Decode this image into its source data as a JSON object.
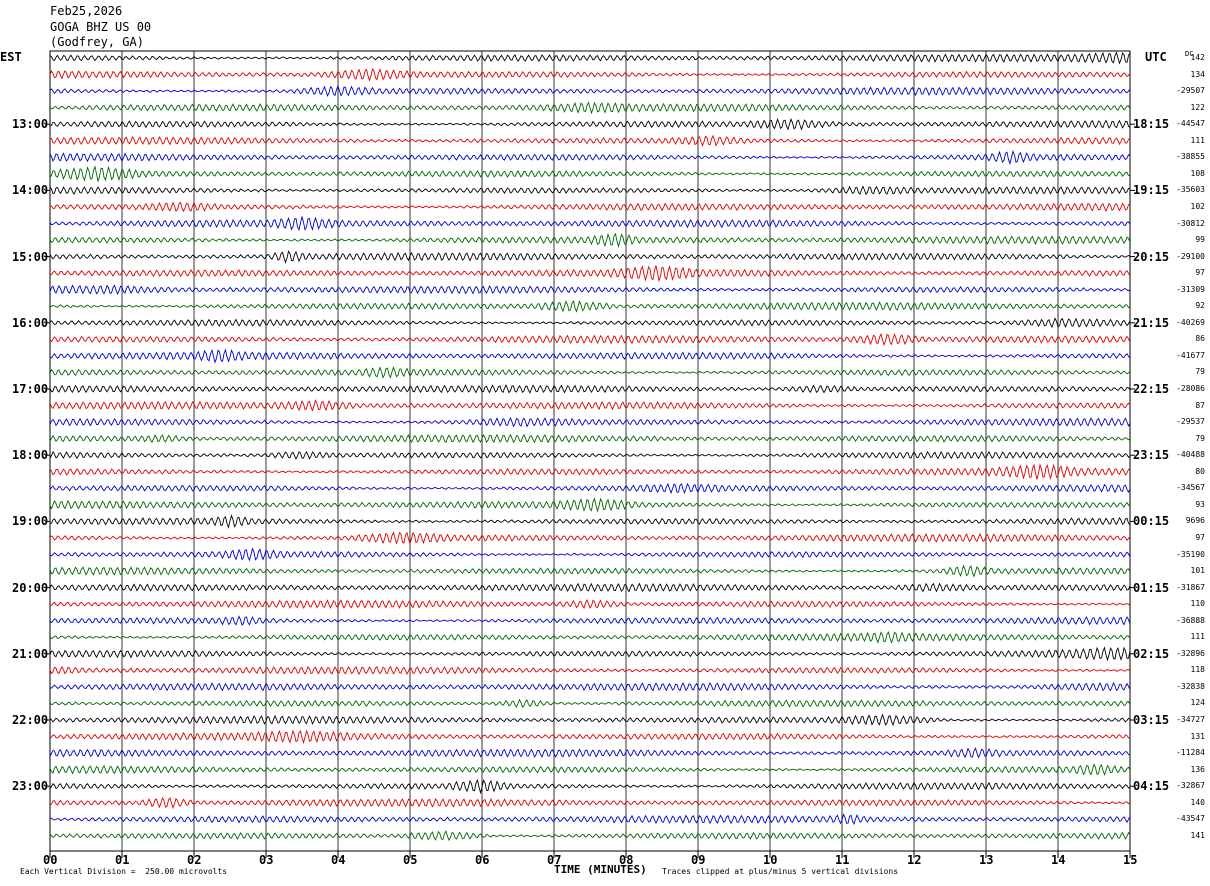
{
  "header": {
    "date": "Feb25,2026",
    "station": "GOGA BHZ US 00",
    "location": "(Godfrey, GA)"
  },
  "left_tz": "EST",
  "right_tz": "UTC",
  "dc_label": "DC",
  "footer": {
    "vertical_division": "Each Vertical Division =  250.00 microvolts",
    "xlabel": "TIME (MINUTES)",
    "clip_note": "Traces clipped at plus/minus 5 vertical divisions"
  },
  "chart_data": {
    "type": "line",
    "title": "Feb25,2026 GOGA BHZ US 00 (Godfrey, GA)",
    "xlabel": "TIME (MINUTES)",
    "ylabel": "",
    "xlim": [
      0,
      15
    ],
    "x_ticks": [
      "00",
      "01",
      "02",
      "03",
      "04",
      "05",
      "06",
      "07",
      "08",
      "09",
      "10",
      "11",
      "12",
      "13",
      "14",
      "15"
    ],
    "grid": true,
    "row_minutes": 15,
    "trace_colors": [
      "#000000",
      "#dd0000",
      "#0000cc",
      "#006600"
    ],
    "left_hour_labels": [
      "13:00",
      "14:00",
      "15:00",
      "16:00",
      "17:00",
      "18:00",
      "19:00",
      "20:00",
      "21:00",
      "22:00",
      "23:00"
    ],
    "right_hour_labels": [
      "18:15",
      "19:15",
      "20:15",
      "21:15",
      "22:15",
      "23:15",
      "00:15",
      "01:15",
      "02:15",
      "03:15",
      "04:15"
    ],
    "dc_offsets": [
      "142",
      "134",
      "-29507",
      "122",
      "-44547",
      "111",
      "-38855",
      "108",
      "-35603",
      "102",
      "-30812",
      "99",
      "-29100",
      "97",
      "-31309",
      "92",
      "-40269",
      "86",
      "-41677",
      "79",
      "-28086",
      "87",
      "-29537",
      "79",
      "-40488",
      "80",
      "-34567",
      "93",
      "9696",
      "97",
      "-35190",
      "101",
      "-31867",
      "110",
      "-36888",
      "111",
      "-32896",
      "118",
      "-32838",
      "124",
      "-34727",
      "131",
      "-11284",
      "136",
      "-32867",
      "140",
      "-43547",
      "141"
    ],
    "vertical_division_microvolts": 250.0
  }
}
